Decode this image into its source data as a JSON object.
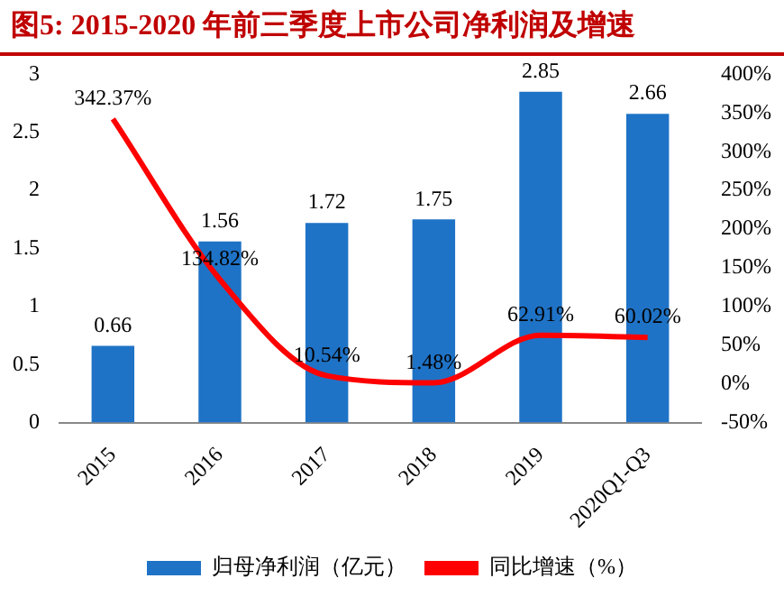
{
  "chart_data": {
    "type": "bar",
    "title": "图5:  2015-2020 年前三季度上市公司净利润及增速",
    "categories": [
      "2015",
      "2016",
      "2017",
      "2018",
      "2019",
      "2020Q1-Q3"
    ],
    "series": [
      {
        "name": "归母净利润（亿元）",
        "color": "#1f73c6",
        "values": [
          0.66,
          1.56,
          1.72,
          1.75,
          2.85,
          2.66
        ],
        "value_labels": [
          "0.66",
          "1.56",
          "1.72",
          "1.75",
          "2.85",
          "2.66"
        ]
      },
      {
        "name": "同比增速（%）",
        "type": "line",
        "axis": "y2",
        "color": "#ff0000",
        "marker": "none",
        "values": [
          342.37,
          134.82,
          10.54,
          1.48,
          62.91,
          60.02
        ],
        "value_labels": [
          "342.37%",
          "134.82%",
          "10.54%",
          "1.48%",
          "62.91%",
          "60.02%"
        ]
      }
    ],
    "ylim": [
      0,
      3
    ],
    "yticks": [
      0,
      0.5,
      1,
      1.5,
      2,
      2.5,
      3
    ],
    "y2lim": [
      -50,
      400
    ],
    "y2ticks": [
      {
        "value": -50,
        "label": "-50%"
      },
      {
        "value": 0,
        "label": "0%"
      },
      {
        "value": 50,
        "label": "50%"
      },
      {
        "value": 100,
        "label": "100%"
      },
      {
        "value": 150,
        "label": "150%"
      },
      {
        "value": 200,
        "label": "200%"
      },
      {
        "value": 250,
        "label": "250%"
      },
      {
        "value": 300,
        "label": "300%"
      },
      {
        "value": 350,
        "label": "350%"
      },
      {
        "value": 400,
        "label": "400%"
      }
    ],
    "grid": false,
    "legend": "bottom"
  }
}
